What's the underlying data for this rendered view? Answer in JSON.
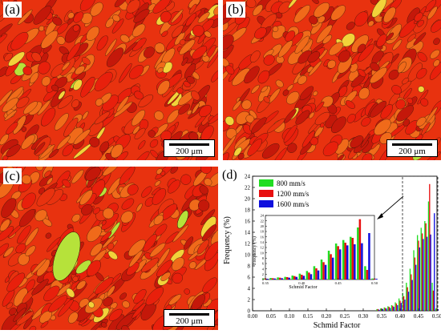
{
  "panels": [
    {
      "id": "a",
      "label": "(a)",
      "scale": "200 μm",
      "seed": 11
    },
    {
      "id": "b",
      "label": "(b)",
      "scale": "200 μm",
      "seed": 23
    },
    {
      "id": "c",
      "label": "(c)",
      "scale": "200 μm",
      "seed": 37
    }
  ],
  "ebsd_colors": {
    "base": "#e8320f",
    "red": "#e8200c",
    "dark_red": "#c4180a",
    "orange": "#f06a1a",
    "yellow": "#f2d23a",
    "green": "#b6e23a",
    "boundary": "#2a1208"
  },
  "figure_d": {
    "label": "(d)",
    "xlabel": "Schmid Factor",
    "ylabel": "Frequency (%)",
    "inset_xlabel": "Schmid Factor",
    "inset_ylabel": "Frequency (%)"
  },
  "chart_data": {
    "type": "bar",
    "xlabel": "Schmid Factor",
    "ylabel": "Frequency (%)",
    "xlim": [
      0.0,
      0.5
    ],
    "ylim": [
      0,
      24
    ],
    "xticks": [
      "0.00",
      "0.05",
      "0.10",
      "0.15",
      "0.20",
      "0.25",
      "0.30",
      "0.35",
      "0.40",
      "0.45",
      "0.50"
    ],
    "yticks": [
      "0",
      "2",
      "4",
      "6",
      "8",
      "10",
      "12",
      "14",
      "16",
      "18",
      "20",
      "22",
      "24"
    ],
    "legend_position": "top-left",
    "x": [
      0.34,
      0.35,
      0.36,
      0.37,
      0.38,
      0.39,
      0.4,
      0.41,
      0.42,
      0.43,
      0.44,
      0.45,
      0.46,
      0.47,
      0.48,
      0.49,
      0.5
    ],
    "series": [
      {
        "name": "800 mm/s",
        "color": "#22dd22",
        "values": [
          0.3,
          0.4,
          0.6,
          0.8,
          1.0,
          1.5,
          2.2,
          3.2,
          5.0,
          7.5,
          10.8,
          13.5,
          14.8,
          16.0,
          19.5,
          5.0,
          0.4
        ]
      },
      {
        "name": "1200 mm/s",
        "color": "#e81010",
        "values": [
          0.3,
          0.4,
          0.5,
          0.7,
          0.9,
          1.3,
          1.8,
          2.6,
          4.2,
          6.5,
          9.5,
          12.5,
          13.8,
          15.6,
          22.6,
          3.6,
          0.3
        ]
      },
      {
        "name": "1600 mm/s",
        "color": "#1010dd",
        "values": [
          0.2,
          0.3,
          0.4,
          0.5,
          0.7,
          1.0,
          1.4,
          2.0,
          3.4,
          5.5,
          8.2,
          11.3,
          12.8,
          13.2,
          13.6,
          17.4,
          0.3
        ]
      }
    ],
    "inset": {
      "xlim": [
        0.35,
        0.5
      ],
      "ylim": [
        0,
        24
      ],
      "xticks": [
        "0.35",
        "0.40",
        "0.45",
        "0.50"
      ],
      "yticks": [
        "0",
        "2",
        "4",
        "6",
        "8",
        "10",
        "12",
        "14",
        "16",
        "18",
        "20",
        "22",
        "24"
      ]
    }
  }
}
